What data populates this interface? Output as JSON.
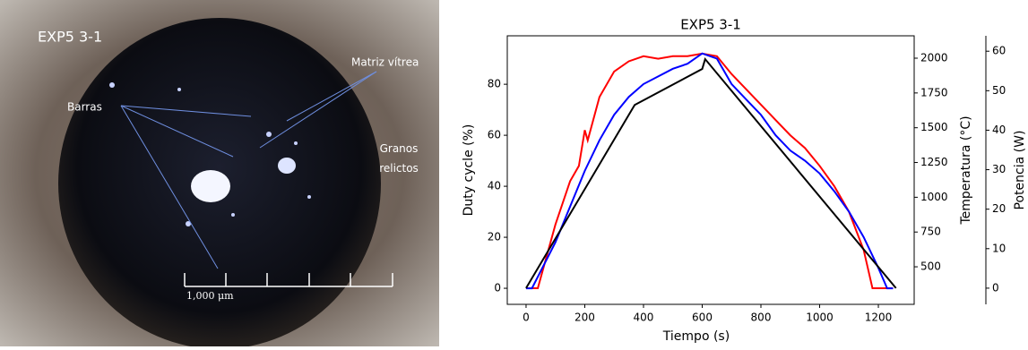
{
  "photo": {
    "label": "EXP5 3-1",
    "annotations": [
      "Matriz vítrea",
      "Barras",
      "Granos relictos"
    ],
    "scale_bar": "1,000 μm"
  },
  "chart_data": {
    "type": "line",
    "title": "EXP5 3-1",
    "x_label": "Tiempo (s)",
    "y_label": "Duty cycle (%)",
    "y2_label": "Temperatura (°C)",
    "y3_label": "Potencia (W)",
    "xlim": [
      -64,
      1322
    ],
    "xticks": [
      0,
      200,
      400,
      600,
      800,
      1000,
      1200
    ],
    "ylim": [
      -6.3,
      99
    ],
    "yticks": [
      0,
      20,
      40,
      60,
      80
    ],
    "y2lim": [
      230,
      2161
    ],
    "y2ticks": [
      500,
      750,
      1000,
      1250,
      1500,
      1750,
      2000
    ],
    "y3lim": [
      -4.1,
      63.9
    ],
    "y3ticks": [
      0,
      10,
      20,
      30,
      40,
      50,
      60
    ],
    "series": [
      {
        "color": "#ff0000",
        "axis": "y",
        "x": [
          0,
          40,
          100,
          150,
          180,
          200,
          210,
          250,
          300,
          350,
          400,
          450,
          500,
          550,
          600,
          650,
          700,
          750,
          800,
          850,
          900,
          950,
          1000,
          1050,
          1100,
          1150,
          1180,
          1250
        ],
        "values": [
          0,
          0,
          25,
          42,
          48,
          62,
          58,
          75,
          85,
          89,
          91,
          90,
          91,
          91,
          92,
          91,
          84,
          78,
          72,
          66,
          60,
          55,
          48,
          40,
          30,
          15,
          0,
          0
        ]
      },
      {
        "color": "#0000ff",
        "axis": "y2",
        "x": [
          0,
          20,
          100,
          150,
          200,
          250,
          300,
          350,
          400,
          450,
          500,
          550,
          600,
          650,
          700,
          750,
          800,
          850,
          900,
          950,
          1000,
          1050,
          1100,
          1150,
          1200,
          1230,
          1250
        ],
        "values": [
          345,
          345,
          676,
          933,
          1190,
          1410,
          1593,
          1722,
          1814,
          1869,
          1924,
          1960,
          2034,
          1997,
          1814,
          1703,
          1593,
          1446,
          1336,
          1263,
          1171,
          1043,
          896,
          713,
          492,
          345,
          345
        ]
      },
      {
        "color": "#000000",
        "axis": "y3",
        "x": [
          0,
          370,
          600,
          610,
          1260
        ],
        "values": [
          0,
          46.4,
          55.5,
          58,
          0
        ]
      }
    ]
  }
}
